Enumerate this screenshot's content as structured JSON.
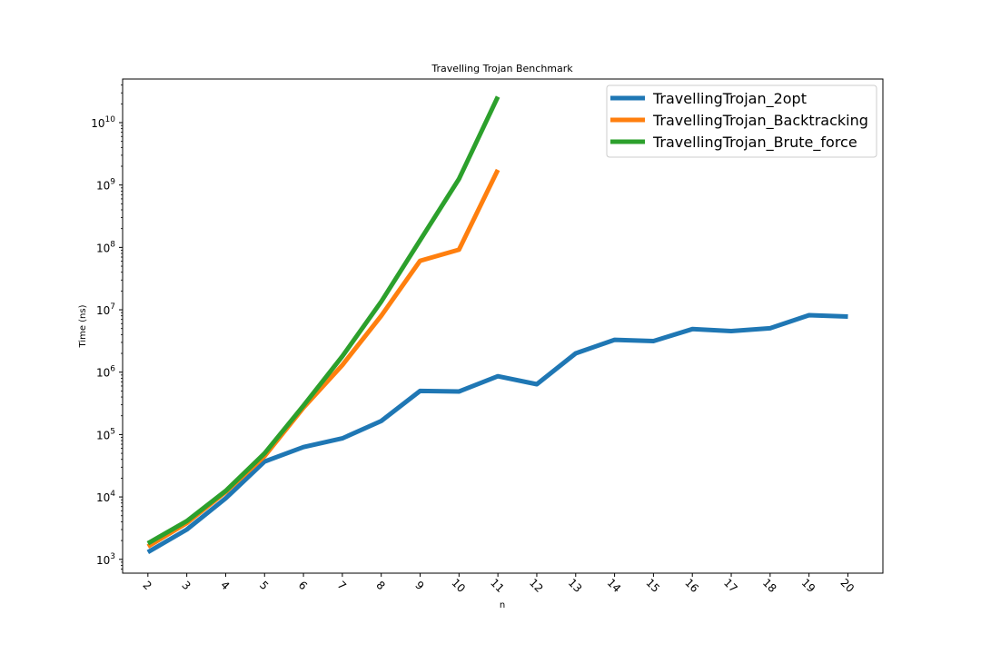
{
  "chart_data": {
    "type": "line",
    "title": "Travelling Trojan Benchmark",
    "xlabel": "n",
    "ylabel": "Time (ns)",
    "yscale": "log",
    "ylim": [
      600,
      50000000000
    ],
    "xlim": [
      1.35,
      20.9
    ],
    "x_ticks": [
      2,
      3,
      4,
      5,
      6,
      7,
      8,
      9,
      10,
      11,
      12,
      13,
      14,
      15,
      16,
      17,
      18,
      19,
      20
    ],
    "y_ticks": [
      {
        "value": 1000,
        "base": "10",
        "exp": "3"
      },
      {
        "value": 10000,
        "base": "10",
        "exp": "4"
      },
      {
        "value": 100000,
        "base": "10",
        "exp": "5"
      },
      {
        "value": 1000000,
        "base": "10",
        "exp": "6"
      },
      {
        "value": 10000000,
        "base": "10",
        "exp": "7"
      },
      {
        "value": 100000000,
        "base": "10",
        "exp": "8"
      },
      {
        "value": 1000000000,
        "base": "10",
        "exp": "9"
      },
      {
        "value": 10000000000,
        "base": "10",
        "exp": "10"
      }
    ],
    "grid": false,
    "legend_position": "top-right",
    "series": [
      {
        "name": "TravellingTrojan_2opt",
        "color": "#1f77b4",
        "x": [
          2,
          3,
          4,
          5,
          6,
          7,
          8,
          9,
          10,
          11,
          12,
          13,
          14,
          15,
          16,
          17,
          18,
          19,
          20
        ],
        "values": [
          1300,
          3000,
          9500,
          37000,
          63000,
          87000,
          165000,
          500000,
          490000,
          860000,
          640000,
          2000000,
          3300000,
          3150000,
          4900000,
          4550000,
          5050000,
          8200000,
          7800000
        ]
      },
      {
        "name": "TravellingTrojan_Backtracking",
        "color": "#ff7f0e",
        "x": [
          2,
          3,
          4,
          5,
          6,
          7,
          8,
          9,
          10,
          11
        ],
        "values": [
          1600,
          3800,
          12000,
          45000,
          270000,
          1300000,
          8000000,
          61000000,
          92000000,
          1750000000
        ]
      },
      {
        "name": "TravellingTrojan_Brute_force",
        "color": "#2ca02c",
        "x": [
          2,
          3,
          4,
          5,
          6,
          7,
          8,
          9,
          10,
          11
        ],
        "values": [
          1800,
          4100,
          12500,
          50000,
          290000,
          1800000,
          13500000,
          130000000,
          1250000000,
          26000000000
        ]
      }
    ]
  }
}
